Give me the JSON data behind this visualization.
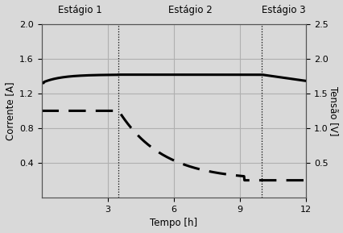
{
  "xlabel": "Tempo [h]",
  "ylabel_left": "Corrente [A]",
  "ylabel_right": "Tensão [V]",
  "xlim": [
    0,
    12
  ],
  "ylim_left": [
    0,
    2.0
  ],
  "ylim_right": [
    0,
    2.5
  ],
  "xticks": [
    3,
    6,
    9,
    12
  ],
  "yticks_left": [
    0.4,
    0.8,
    1.2,
    1.6,
    2.0
  ],
  "yticks_right": [
    0.5,
    1.0,
    1.5,
    2.0,
    2.5
  ],
  "stage1_label": "Estágio 1",
  "stage2_label": "Estágio 2",
  "stage3_label": "Estágio 3",
  "vline1": 3.5,
  "vline2": 10.0,
  "bg_color": "#d9d9d9",
  "grid_color": "#b0b0b0"
}
